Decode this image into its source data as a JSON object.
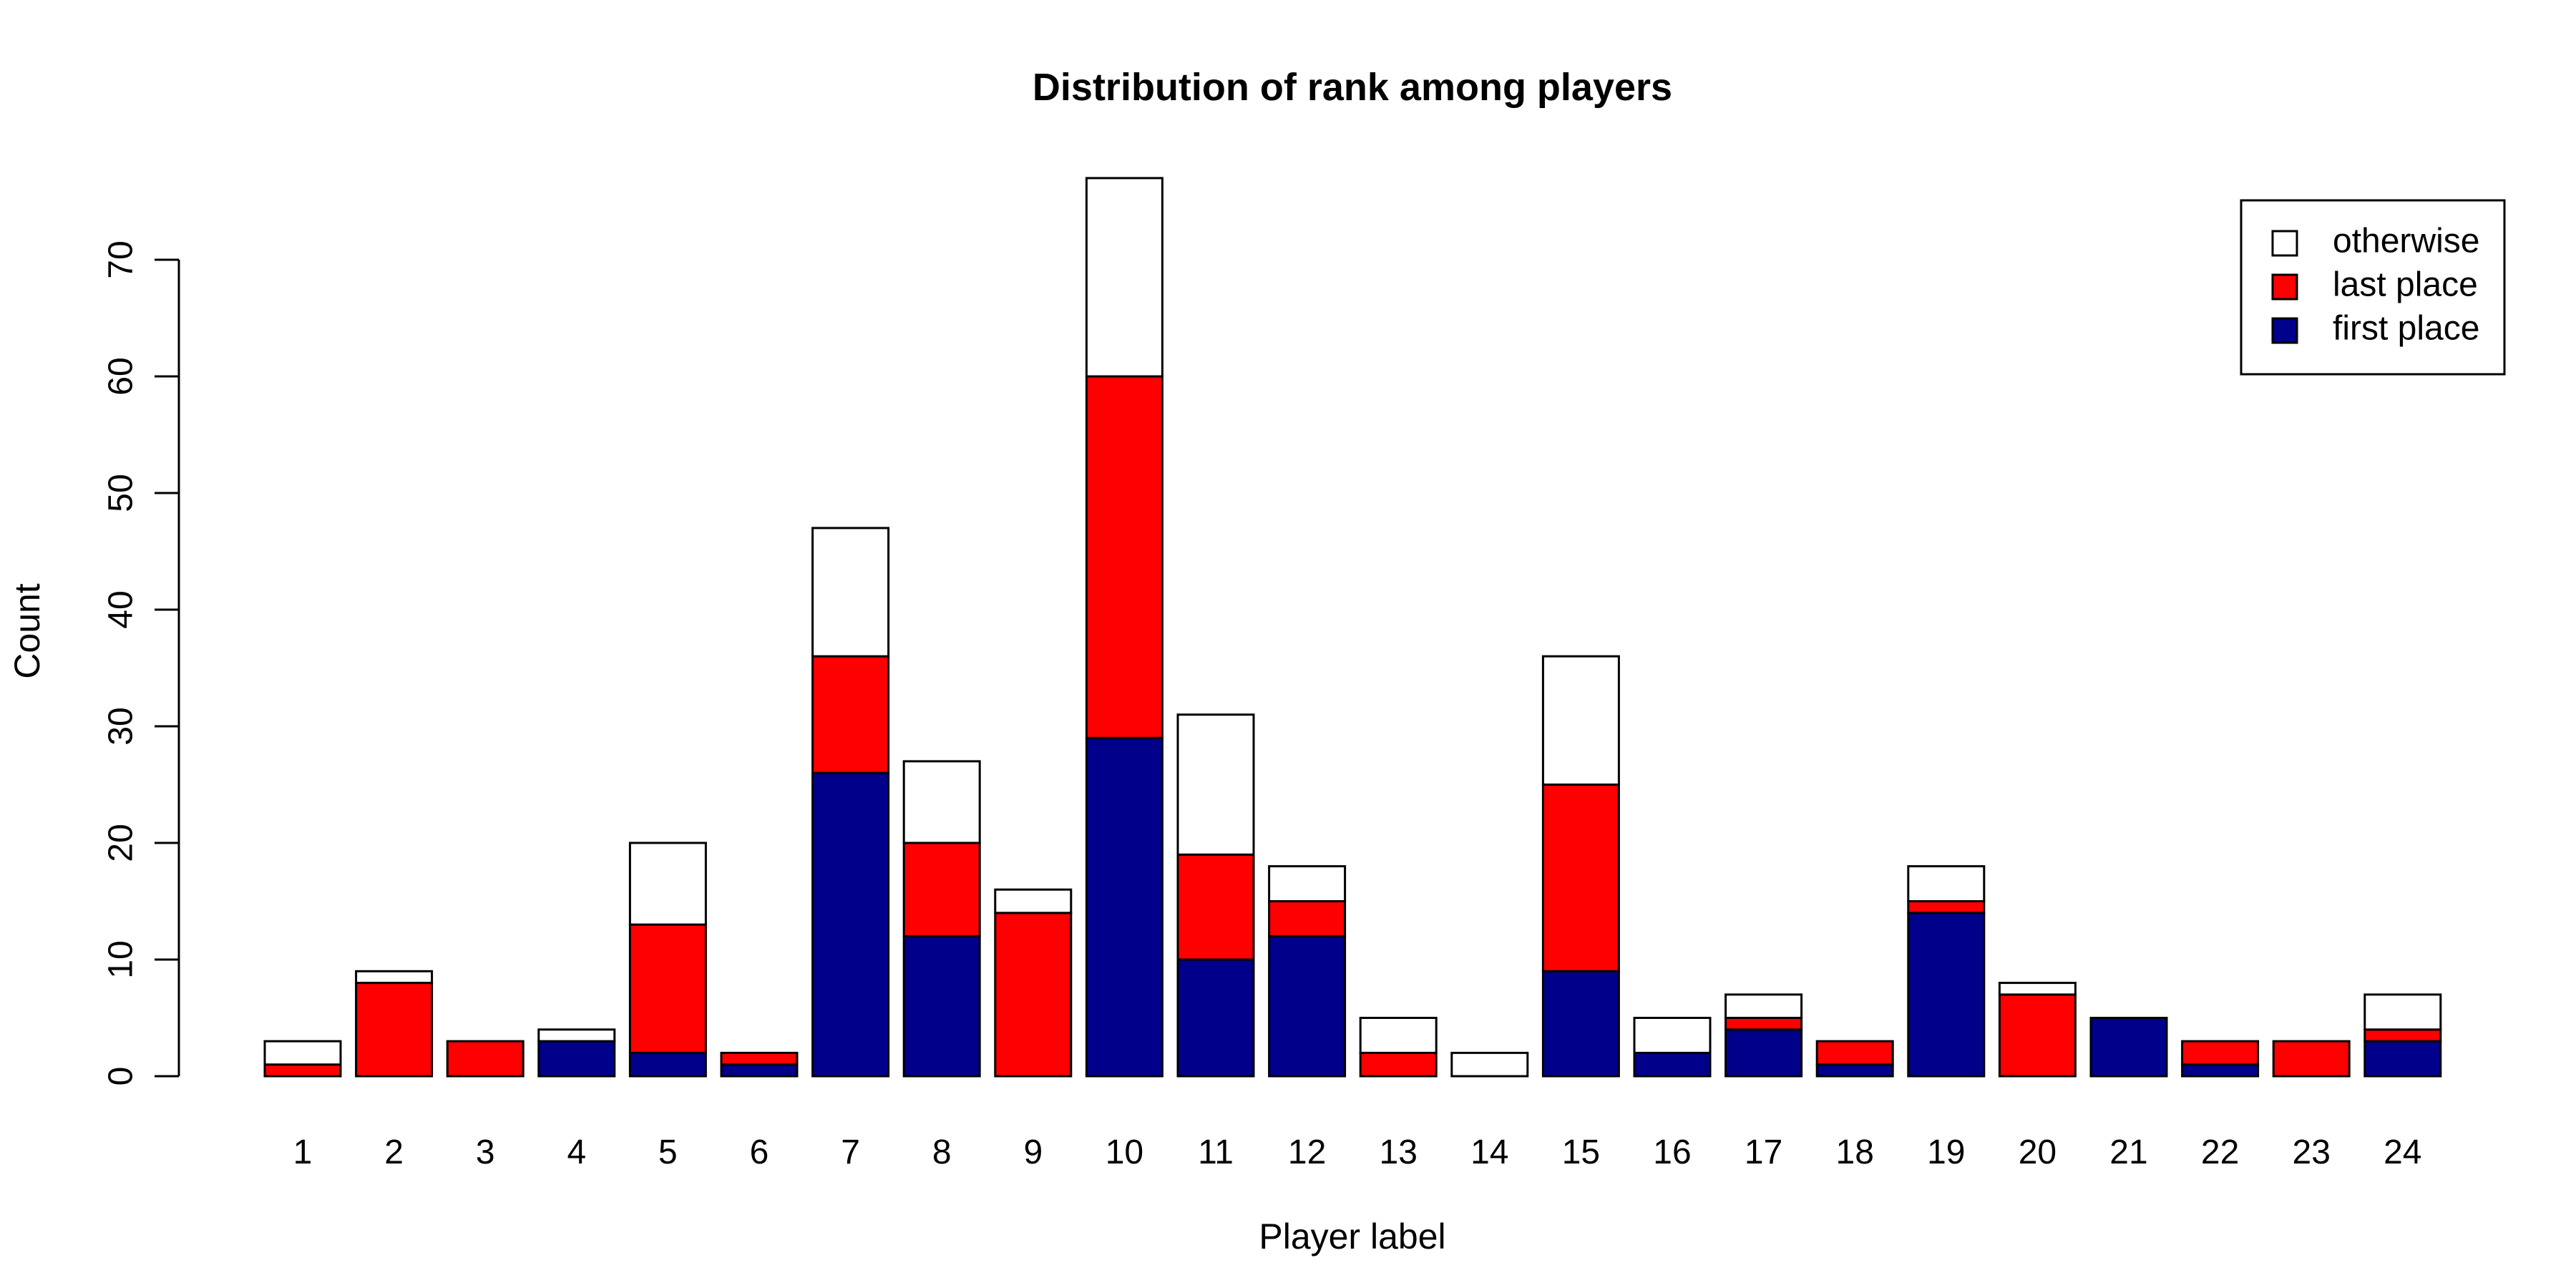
{
  "chart_data": {
    "type": "bar",
    "stacked": true,
    "title": "Distribution of rank among players",
    "xlabel": "Player label",
    "ylabel": "Count",
    "ylim": [
      0,
      77
    ],
    "yticks": [
      0,
      10,
      20,
      30,
      40,
      50,
      60,
      70
    ],
    "categories": [
      "1",
      "2",
      "3",
      "4",
      "5",
      "6",
      "7",
      "8",
      "9",
      "10",
      "11",
      "12",
      "13",
      "14",
      "15",
      "16",
      "17",
      "18",
      "19",
      "20",
      "21",
      "22",
      "23",
      "24"
    ],
    "series": [
      {
        "name": "first place",
        "color": "#00008B",
        "values": [
          0,
          0,
          0,
          3,
          2,
          1,
          26,
          12,
          0,
          29,
          10,
          12,
          0,
          0,
          9,
          2,
          4,
          1,
          14,
          0,
          5,
          1,
          0,
          3
        ]
      },
      {
        "name": "last place",
        "color": "#FF0000",
        "values": [
          1,
          8,
          3,
          0,
          11,
          1,
          10,
          8,
          14,
          31,
          9,
          3,
          2,
          0,
          16,
          0,
          1,
          2,
          1,
          7,
          0,
          2,
          3,
          1
        ]
      },
      {
        "name": "otherwise",
        "color": "#FFFFFF",
        "values": [
          2,
          1,
          0,
          1,
          7,
          0,
          11,
          7,
          2,
          17,
          12,
          3,
          3,
          2,
          11,
          3,
          2,
          0,
          3,
          1,
          0,
          0,
          0,
          3
        ]
      }
    ],
    "legend": {
      "position": "top-right",
      "items": [
        {
          "label": "otherwise",
          "color": "#FFFFFF"
        },
        {
          "label": "last place",
          "color": "#FF0000"
        },
        {
          "label": "first place",
          "color": "#00008B"
        }
      ]
    }
  }
}
